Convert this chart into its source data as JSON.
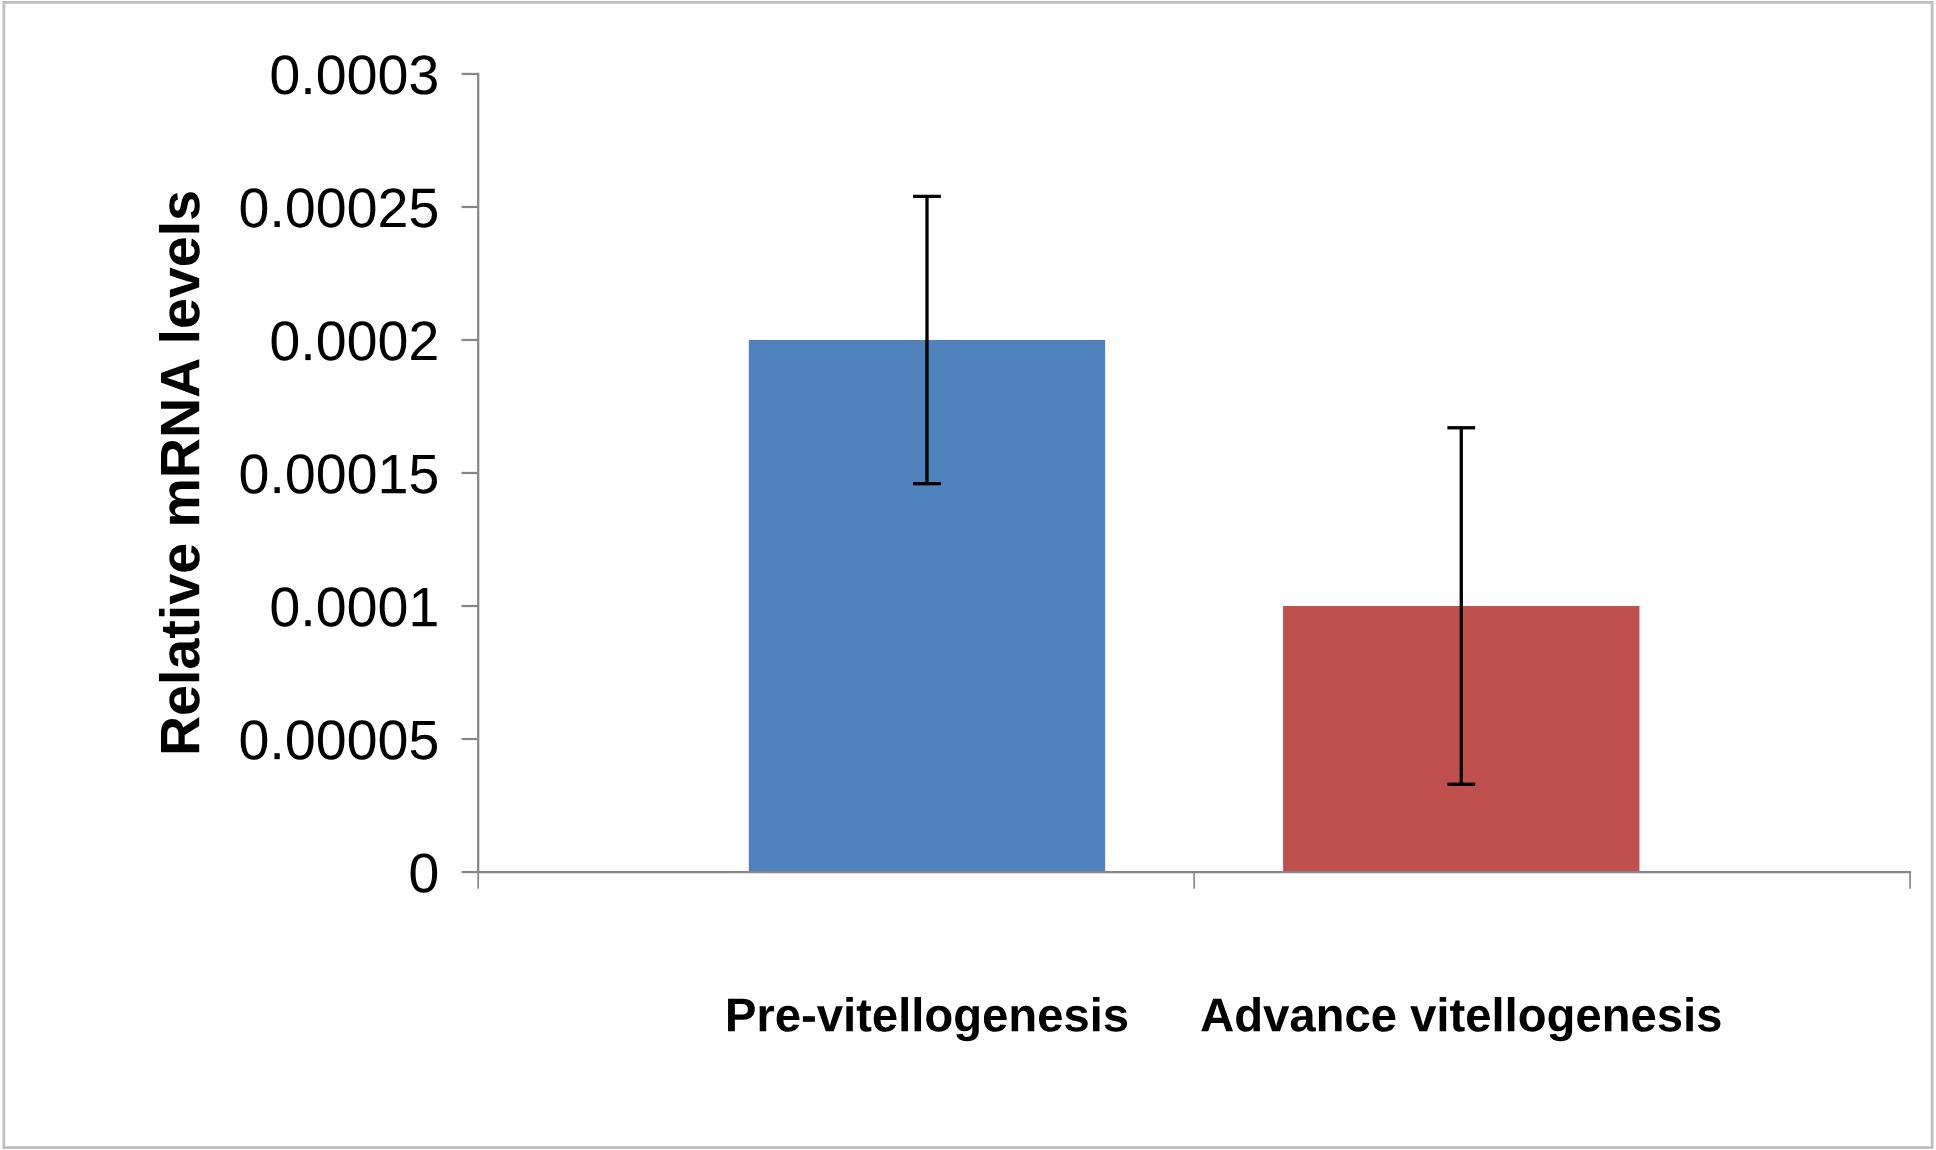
{
  "chart_data": {
    "type": "bar",
    "ylabel": "Relative mRNA levels",
    "categories": [
      "Pre-vitellogenesis",
      "Advance vitellogenesis"
    ],
    "values": [
      0.0002,
      0.0001
    ],
    "colors": [
      "#4f81bd",
      "#c0504d"
    ],
    "errors": [
      5.4e-05,
      6.7e-05
    ],
    "ylim": [
      0,
      0.0003
    ],
    "yticks": [
      {
        "value": 0,
        "label": "0"
      },
      {
        "value": 5e-05,
        "label": "0.00005"
      },
      {
        "value": 0.0001,
        "label": "0.0001"
      },
      {
        "value": 0.00015,
        "label": "0.00015"
      },
      {
        "value": 0.0002,
        "label": "0.0002"
      },
      {
        "value": 0.00025,
        "label": "0.00025"
      },
      {
        "value": 0.0003,
        "label": "0.0003"
      }
    ],
    "grid": false,
    "legend": false
  }
}
